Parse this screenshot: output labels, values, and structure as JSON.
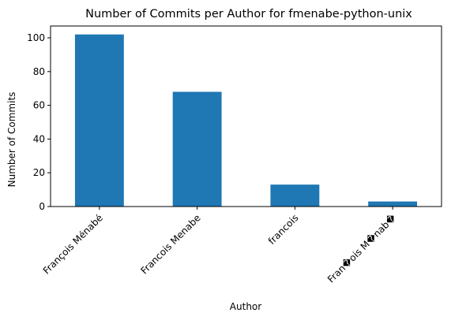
{
  "chart_data": {
    "type": "bar",
    "title": "Number of Commits per Author for fmenabe-python-unix",
    "xlabel": "Author",
    "ylabel": "Number of Commits",
    "categories": [
      "François Ménabé",
      "Francois Menabe",
      "francois",
      "Fran�ois M�nab�"
    ],
    "values": [
      102,
      68,
      13,
      3
    ],
    "ylim": [
      0,
      107
    ],
    "yticks": [
      0,
      20,
      40,
      60,
      80,
      100
    ],
    "bar_color": "#1f77b4",
    "grid": false,
    "legend": "none"
  }
}
